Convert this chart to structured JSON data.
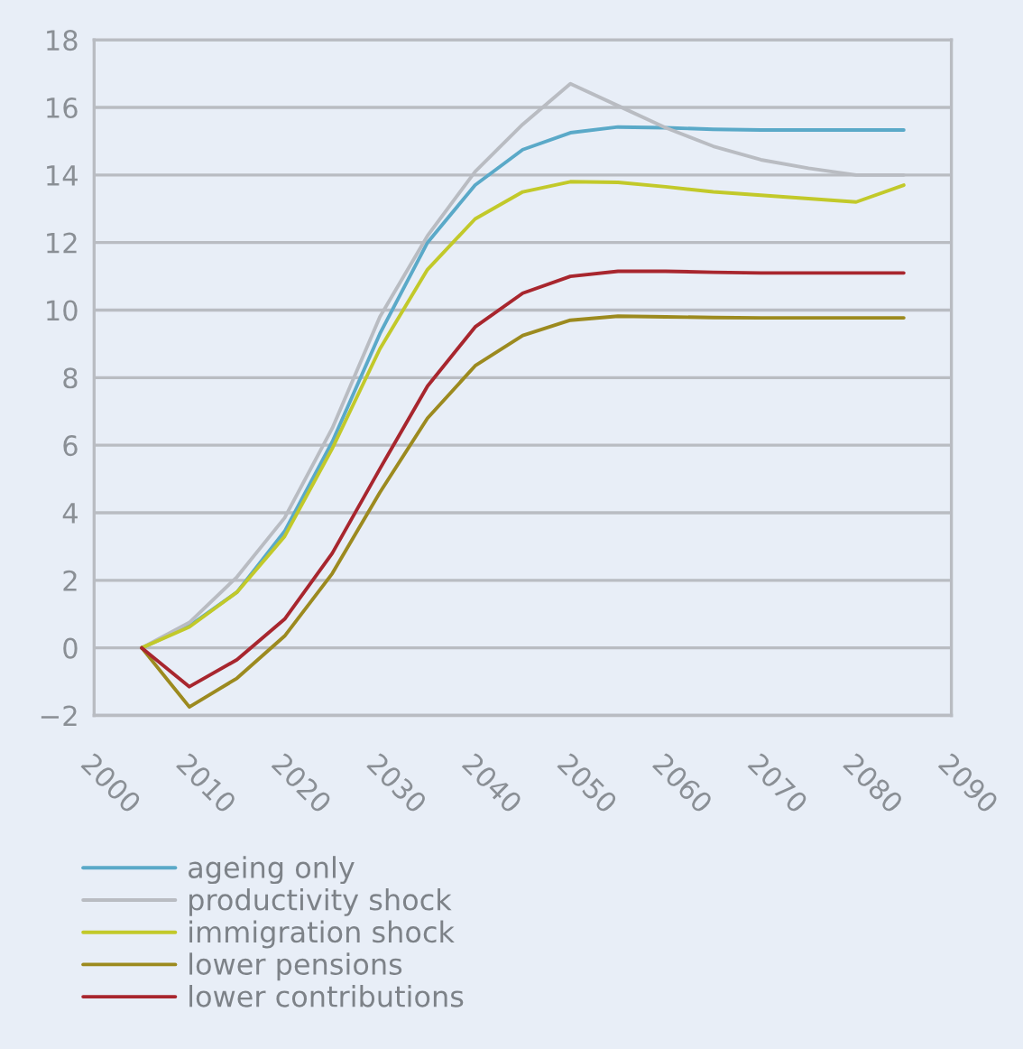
{
  "chart_data": {
    "type": "line",
    "x": [
      2005,
      2010,
      2015,
      2020,
      2025,
      2030,
      2035,
      2040,
      2045,
      2050,
      2055,
      2060,
      2065,
      2070,
      2075,
      2080,
      2085
    ],
    "xlim": [
      2000,
      2090
    ],
    "xticks": [
      2000,
      2010,
      2020,
      2030,
      2040,
      2050,
      2060,
      2070,
      2080,
      2090
    ],
    "ylim": [
      -2,
      18
    ],
    "yticks": [
      {
        "value": -2,
        "label": "−2"
      },
      0,
      2,
      4,
      6,
      8,
      10,
      12,
      14,
      16,
      18
    ],
    "grid": "y",
    "legend": "bottom",
    "marker": "none",
    "line_style": "solid",
    "series": [
      {
        "name": "ageing only",
        "color": "#5aa9c8",
        "values": [
          0,
          0.65,
          1.65,
          3.45,
          6.1,
          9.3,
          12.0,
          13.7,
          14.75,
          15.25,
          15.42,
          15.4,
          15.35,
          15.33,
          15.33,
          15.33,
          15.33
        ]
      },
      {
        "name": "productivity shock",
        "color": "#b9bcc2",
        "values": [
          0,
          0.75,
          2.1,
          3.85,
          6.5,
          9.8,
          12.2,
          14.1,
          15.5,
          16.7,
          16.05,
          15.4,
          14.85,
          14.45,
          14.2,
          14.0,
          14.0
        ]
      },
      {
        "name": "immigration shock",
        "color": "#c2c92a",
        "values": [
          0,
          0.62,
          1.65,
          3.3,
          5.9,
          8.85,
          11.2,
          12.7,
          13.5,
          13.8,
          13.78,
          13.65,
          13.5,
          13.4,
          13.3,
          13.2,
          13.7
        ]
      },
      {
        "name": "lower pensions",
        "color": "#9c8a1f",
        "values": [
          0,
          -1.75,
          -0.9,
          0.35,
          2.2,
          4.6,
          6.8,
          8.35,
          9.25,
          9.7,
          9.82,
          9.8,
          9.78,
          9.77,
          9.77,
          9.77,
          9.77
        ]
      },
      {
        "name": "lower contributions",
        "color": "#a8262e",
        "values": [
          0,
          -1.15,
          -0.35,
          0.85,
          2.8,
          5.3,
          7.75,
          9.5,
          10.5,
          11.0,
          11.15,
          11.15,
          11.12,
          11.1,
          11.1,
          11.1,
          11.1
        ]
      }
    ]
  }
}
